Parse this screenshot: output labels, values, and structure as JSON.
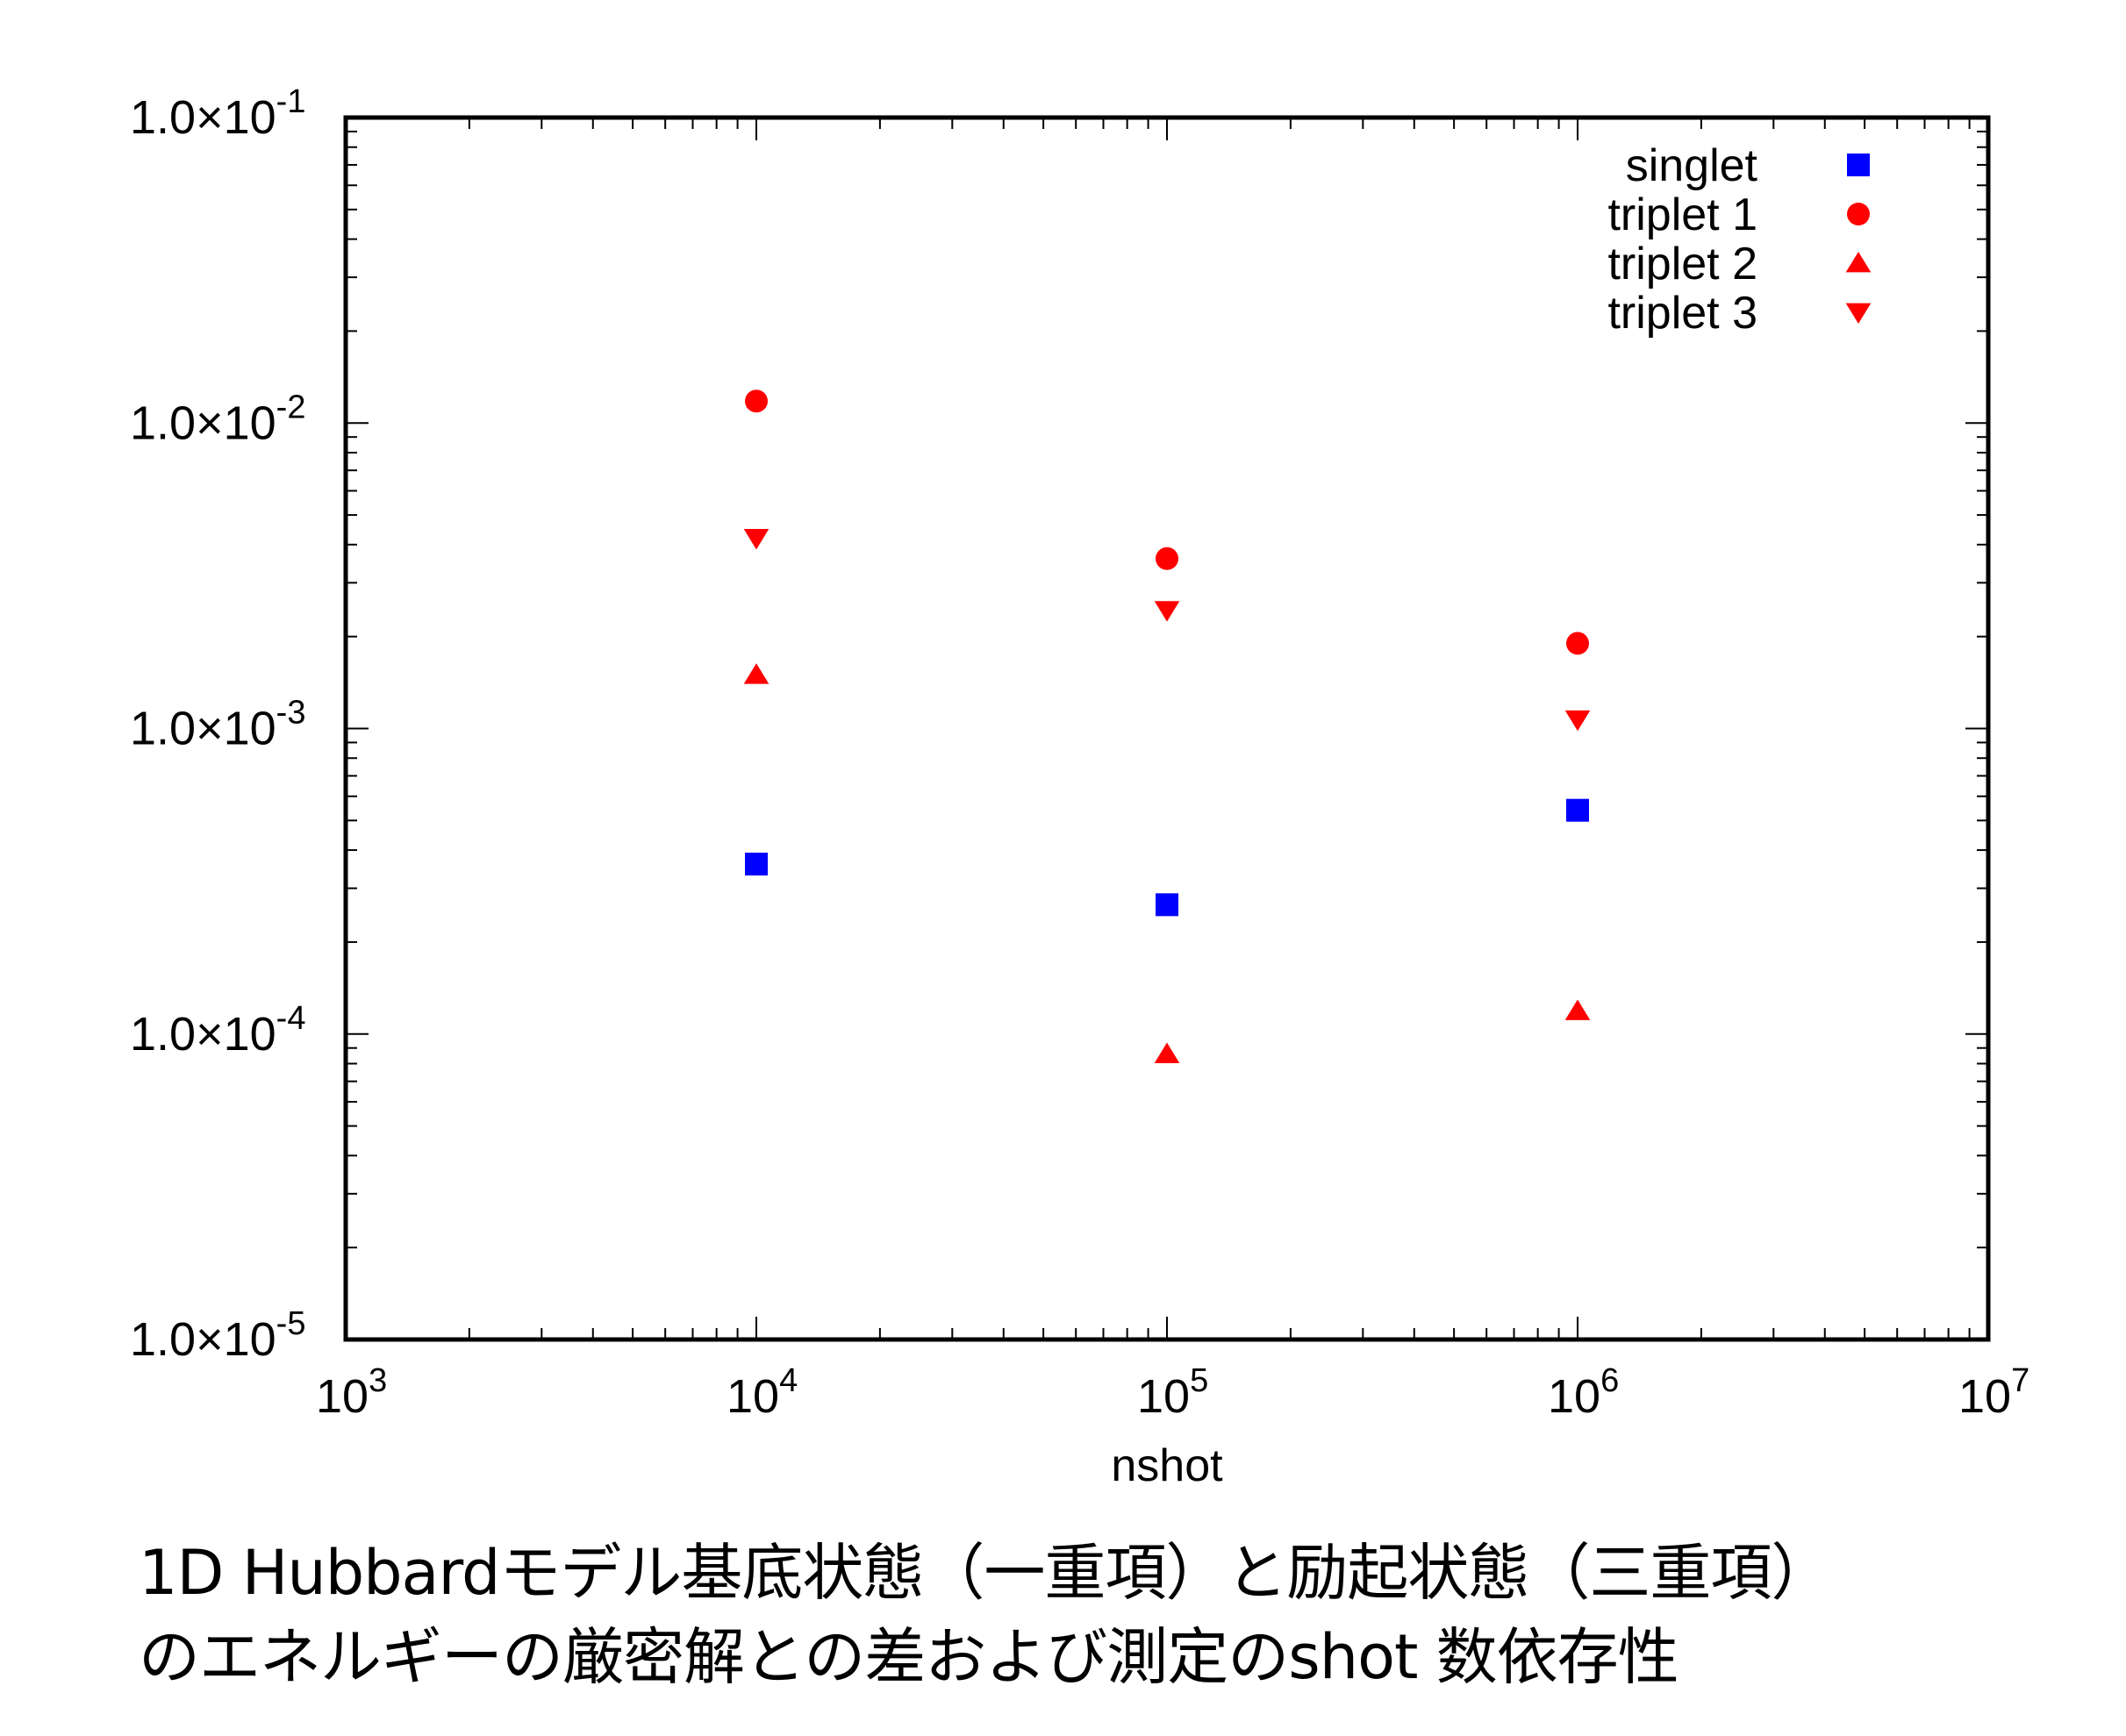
{
  "chart_data": {
    "type": "scatter",
    "xscale": "log",
    "yscale": "log",
    "xlim": [
      1000,
      10000000
    ],
    "ylim": [
      1e-05,
      0.1
    ],
    "xlabel": "nshot",
    "ylabel": "",
    "x_ticks": [
      {
        "value": 1000,
        "base": "10",
        "exp": "3"
      },
      {
        "value": 10000,
        "base": "10",
        "exp": "4"
      },
      {
        "value": 100000,
        "base": "10",
        "exp": "5"
      },
      {
        "value": 1000000,
        "base": "10",
        "exp": "6"
      },
      {
        "value": 10000000,
        "base": "10",
        "exp": "7"
      }
    ],
    "y_ticks": [
      {
        "value": 0.1,
        "base": "1.0×10",
        "exp": "-1"
      },
      {
        "value": 0.01,
        "base": "1.0×10",
        "exp": "-2"
      },
      {
        "value": 0.001,
        "base": "1.0×10",
        "exp": "-3"
      },
      {
        "value": 0.0001,
        "base": "1.0×10",
        "exp": "-4"
      },
      {
        "value": 1e-05,
        "base": "1.0×10",
        "exp": "-5"
      }
    ],
    "legend_position": "top-right",
    "series": [
      {
        "name": "singlet",
        "marker": "square",
        "color": "#0000ff",
        "x": [
          10000,
          100000,
          1000000
        ],
        "y": [
          0.00036,
          0.000265,
          0.00054
        ]
      },
      {
        "name": "triplet 1",
        "marker": "circle",
        "color": "#ff0000",
        "x": [
          10000,
          100000,
          1000000
        ],
        "y": [
          0.0118,
          0.0036,
          0.0019
        ]
      },
      {
        "name": "triplet 2",
        "marker": "triangle-up",
        "color": "#ff0000",
        "x": [
          10000,
          100000,
          1000000
        ],
        "y": [
          0.0015,
          8.6e-05,
          0.000119
        ]
      },
      {
        "name": "triplet 3",
        "marker": "triangle-down",
        "color": "#ff0000",
        "x": [
          10000,
          100000,
          1000000
        ],
        "y": [
          0.0042,
          0.00244,
          0.00107
        ]
      }
    ]
  },
  "caption": {
    "line1": "1D Hubbardモデル基底状態（一重項）と励起状態（三重項）",
    "line2": "のエネルギーの厳密解との差および測定のshot 数依存性"
  }
}
